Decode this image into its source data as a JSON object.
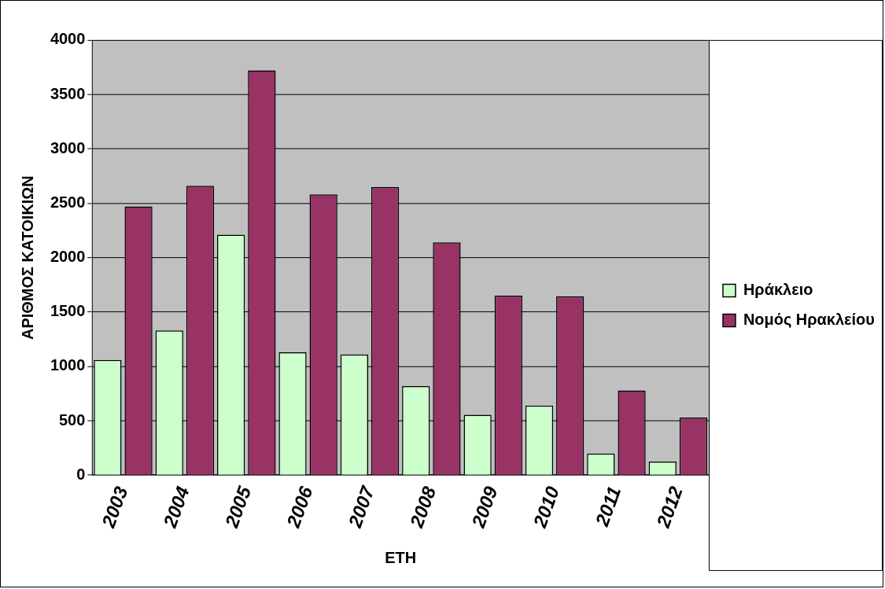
{
  "chart_data": {
    "type": "bar",
    "xlabel": "ΕΤΗ",
    "ylabel": "ΑΡΙΘΜΟΣ ΚΑΤΟΙΚΙΩΝ",
    "categories": [
      "2003",
      "2004",
      "2005",
      "2006",
      "2007",
      "2008",
      "2009",
      "2010",
      "2011",
      "2012"
    ],
    "series": [
      {
        "name": "Ηράκλειο",
        "color": "#ccffcc",
        "values": [
          1060,
          1330,
          2210,
          1130,
          1110,
          820,
          555,
          640,
          200,
          125
        ]
      },
      {
        "name": "Νομός Ηρακλείου",
        "color": "#993366",
        "values": [
          2470,
          2660,
          3720,
          2580,
          2650,
          2140,
          1650,
          1645,
          780,
          530
        ]
      }
    ],
    "ylim": [
      0,
      4000
    ],
    "yticks": [
      0,
      500,
      1000,
      1500,
      2000,
      2500,
      3000,
      3500,
      4000
    ],
    "grid": "y",
    "legend": "right"
  }
}
